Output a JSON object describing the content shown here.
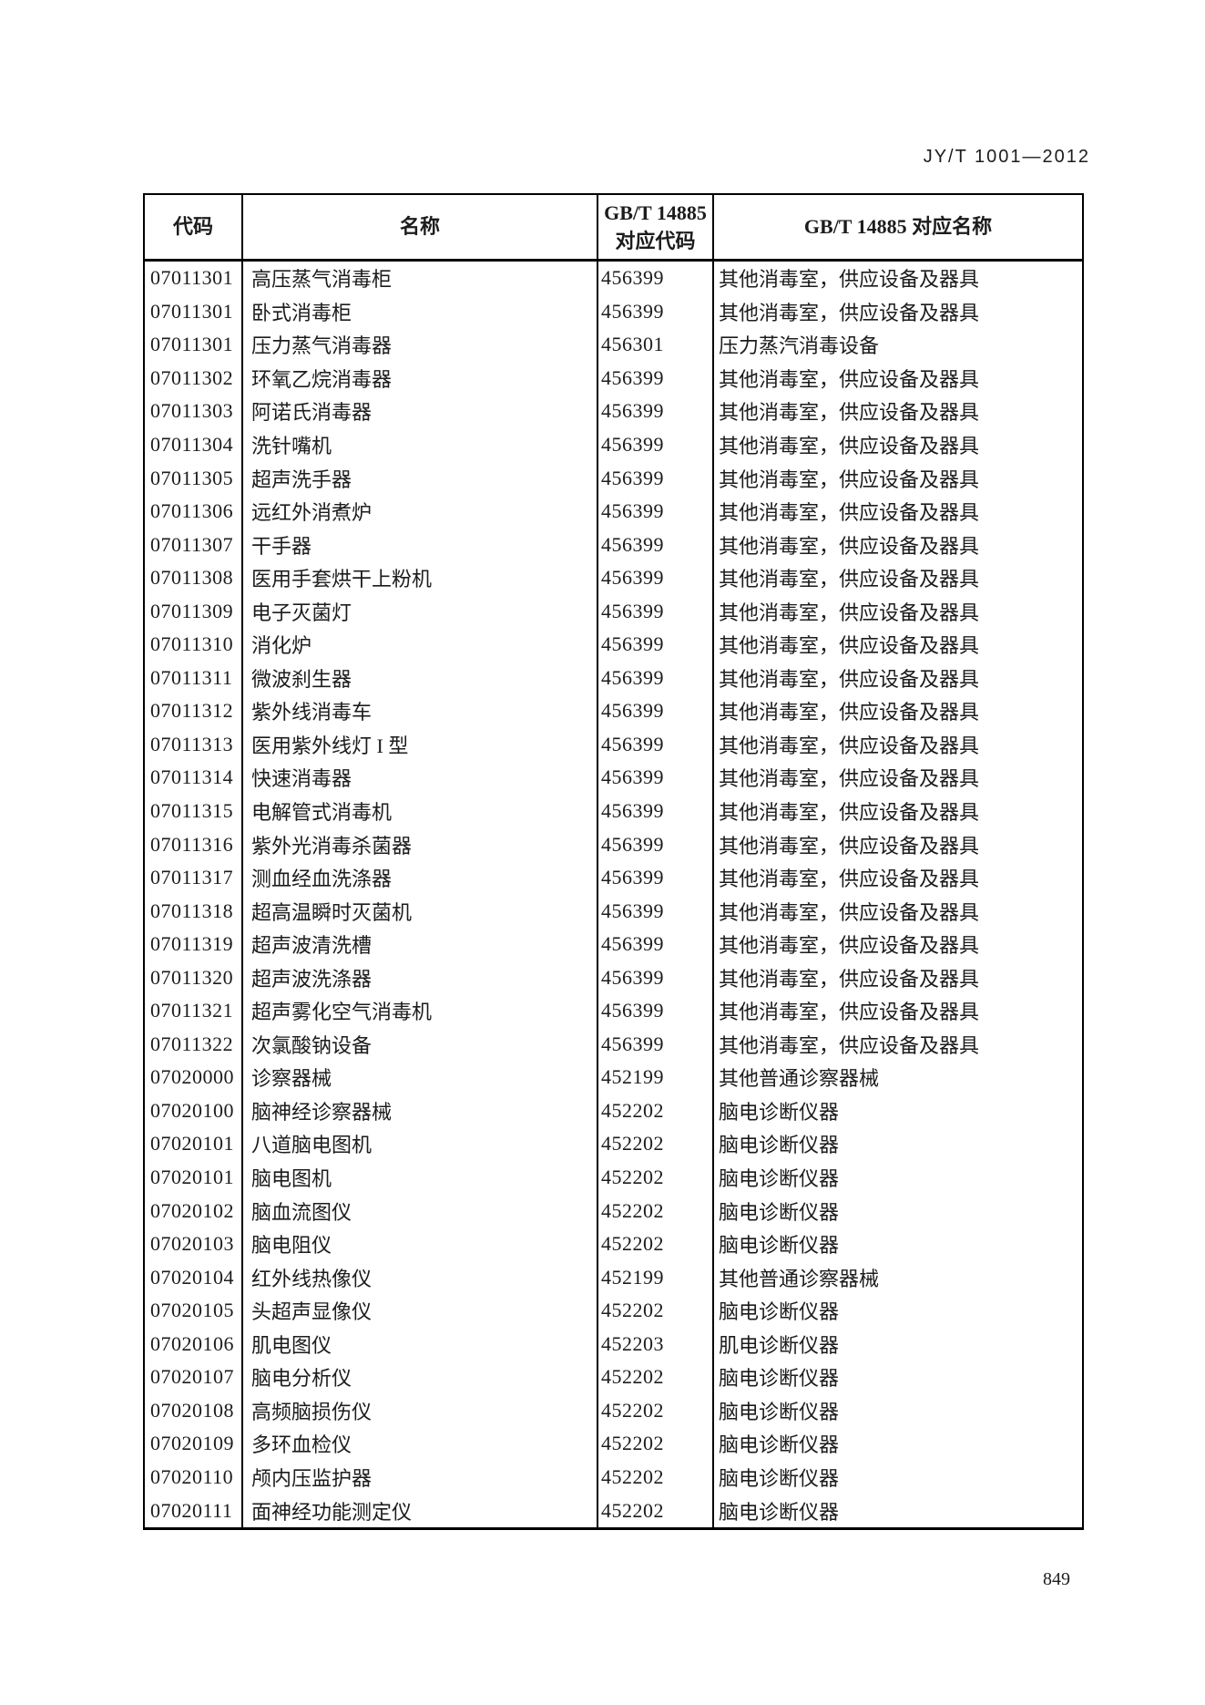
{
  "page": {
    "doc_number": "JY/T 1001—2012",
    "page_number": "849"
  },
  "colors": {
    "text": "#1c1c1c",
    "border": "#000000",
    "background": "#ffffff"
  },
  "table": {
    "headers": {
      "code": "代码",
      "name": "名称",
      "gbt_code_line1": "GB/T 14885",
      "gbt_code_line2": "对应代码",
      "gbt_name": "GB/T 14885 对应名称"
    },
    "rows": [
      [
        "07011301",
        "高压蒸气消毒柜",
        "456399",
        "其他消毒室，供应设备及器具"
      ],
      [
        "07011301",
        "卧式消毒柜",
        "456399",
        "其他消毒室，供应设备及器具"
      ],
      [
        "07011301",
        "压力蒸气消毒器",
        "456301",
        "压力蒸汽消毒设备"
      ],
      [
        "07011302",
        "环氧乙烷消毒器",
        "456399",
        "其他消毒室，供应设备及器具"
      ],
      [
        "07011303",
        "阿诺氏消毒器",
        "456399",
        "其他消毒室，供应设备及器具"
      ],
      [
        "07011304",
        "洗针嘴机",
        "456399",
        "其他消毒室，供应设备及器具"
      ],
      [
        "07011305",
        "超声洗手器",
        "456399",
        "其他消毒室，供应设备及器具"
      ],
      [
        "07011306",
        "远红外消煮炉",
        "456399",
        "其他消毒室，供应设备及器具"
      ],
      [
        "07011307",
        "干手器",
        "456399",
        "其他消毒室，供应设备及器具"
      ],
      [
        "07011308",
        "医用手套烘干上粉机",
        "456399",
        "其他消毒室，供应设备及器具"
      ],
      [
        "07011309",
        "电子灭菌灯",
        "456399",
        "其他消毒室，供应设备及器具"
      ],
      [
        "07011310",
        "消化炉",
        "456399",
        "其他消毒室，供应设备及器具"
      ],
      [
        "07011311",
        "微波刹生器",
        "456399",
        "其他消毒室，供应设备及器具"
      ],
      [
        "07011312",
        "紫外线消毒车",
        "456399",
        "其他消毒室，供应设备及器具"
      ],
      [
        "07011313",
        "医用紫外线灯 I 型",
        "456399",
        "其他消毒室，供应设备及器具"
      ],
      [
        "07011314",
        "快速消毒器",
        "456399",
        "其他消毒室，供应设备及器具"
      ],
      [
        "07011315",
        "电解管式消毒机",
        "456399",
        "其他消毒室，供应设备及器具"
      ],
      [
        "07011316",
        "紫外光消毒杀菌器",
        "456399",
        "其他消毒室，供应设备及器具"
      ],
      [
        "07011317",
        "测血经血洗涤器",
        "456399",
        "其他消毒室，供应设备及器具"
      ],
      [
        "07011318",
        "超高温瞬时灭菌机",
        "456399",
        "其他消毒室，供应设备及器具"
      ],
      [
        "07011319",
        "超声波清洗槽",
        "456399",
        "其他消毒室，供应设备及器具"
      ],
      [
        "07011320",
        "超声波洗涤器",
        "456399",
        "其他消毒室，供应设备及器具"
      ],
      [
        "07011321",
        "超声雾化空气消毒机",
        "456399",
        "其他消毒室，供应设备及器具"
      ],
      [
        "07011322",
        "次氯酸钠设备",
        "456399",
        "其他消毒室，供应设备及器具"
      ],
      [
        "07020000",
        "诊察器械",
        "452199",
        "其他普通诊察器械"
      ],
      [
        "07020100",
        "脑神经诊察器械",
        "452202",
        "脑电诊断仪器"
      ],
      [
        "07020101",
        "八道脑电图机",
        "452202",
        "脑电诊断仪器"
      ],
      [
        "07020101",
        "脑电图机",
        "452202",
        "脑电诊断仪器"
      ],
      [
        "07020102",
        "脑血流图仪",
        "452202",
        "脑电诊断仪器"
      ],
      [
        "07020103",
        "脑电阻仪",
        "452202",
        "脑电诊断仪器"
      ],
      [
        "07020104",
        "红外线热像仪",
        "452199",
        "其他普通诊察器械"
      ],
      [
        "07020105",
        "头超声显像仪",
        "452202",
        "脑电诊断仪器"
      ],
      [
        "07020106",
        "肌电图仪",
        "452203",
        "肌电诊断仪器"
      ],
      [
        "07020107",
        "脑电分析仪",
        "452202",
        "脑电诊断仪器"
      ],
      [
        "07020108",
        "高频脑损伤仪",
        "452202",
        "脑电诊断仪器"
      ],
      [
        "07020109",
        "多环血检仪",
        "452202",
        "脑电诊断仪器"
      ],
      [
        "07020110",
        "颅内压监护器",
        "452202",
        "脑电诊断仪器"
      ],
      [
        "07020111",
        "面神经功能测定仪",
        "452202",
        "脑电诊断仪器"
      ]
    ]
  }
}
